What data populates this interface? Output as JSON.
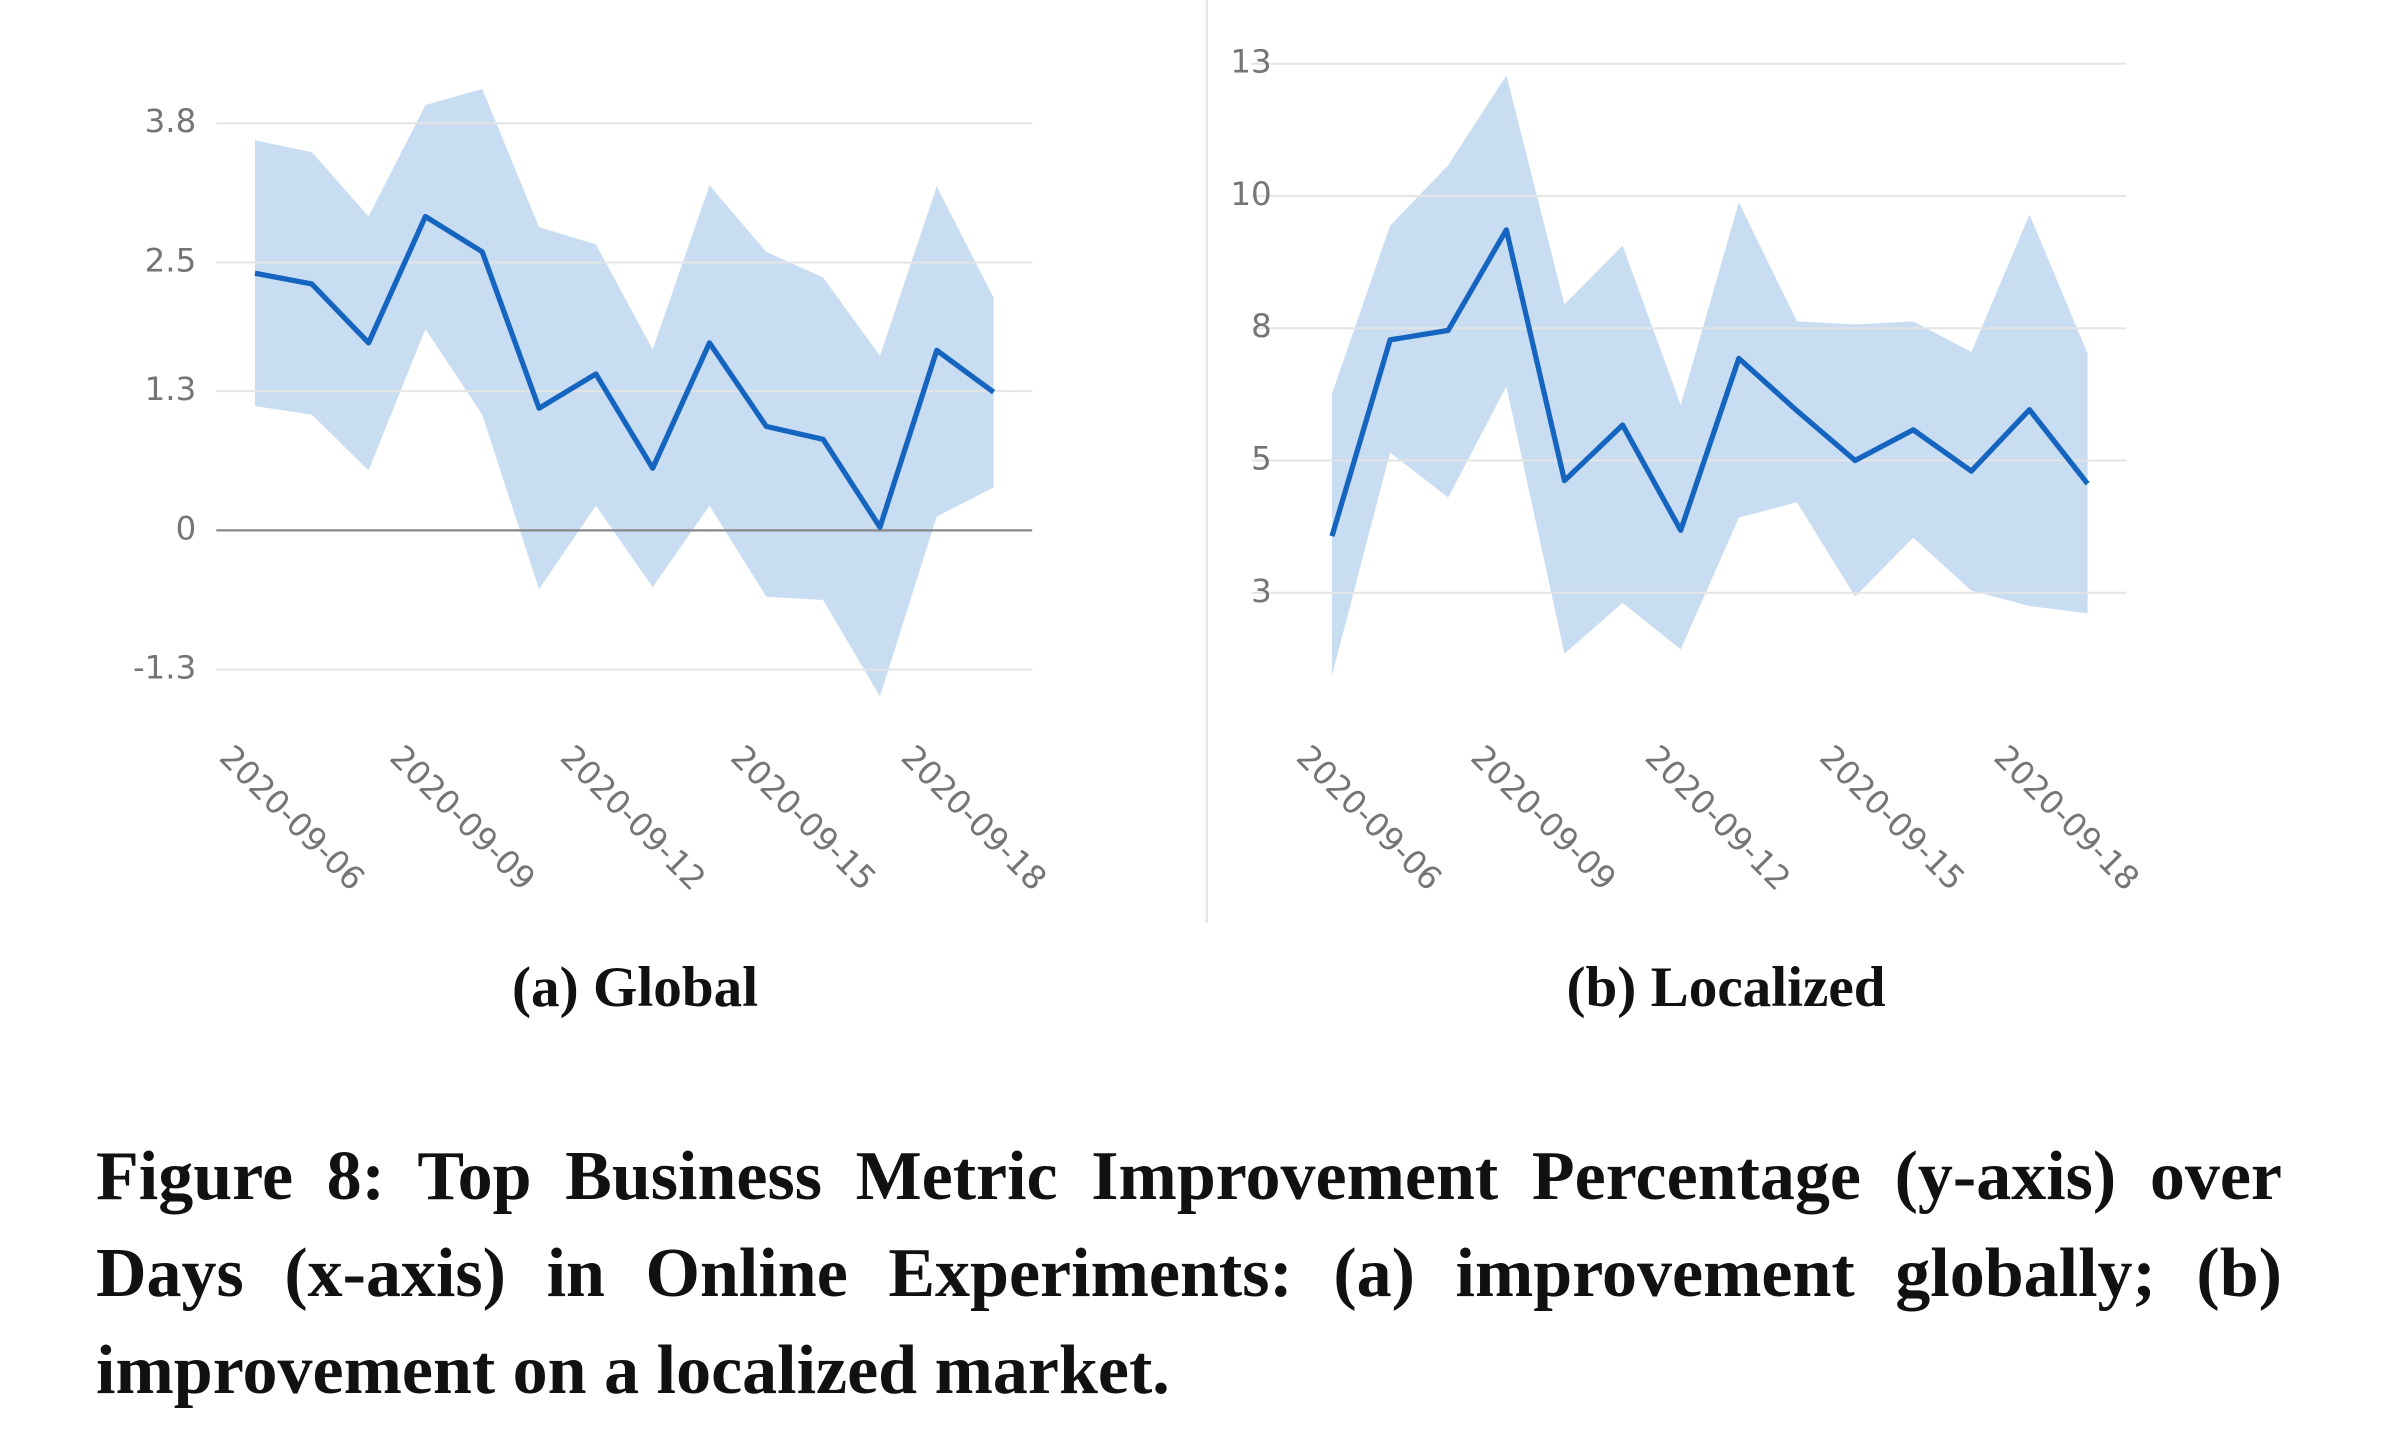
{
  "chart_data": [
    {
      "type": "line",
      "title": "(a) Global",
      "categories": [
        "2020-09-06",
        null,
        null,
        "2020-09-09",
        null,
        null,
        "2020-09-12",
        null,
        null,
        "2020-09-15",
        null,
        null,
        "2020-09-18",
        null
      ],
      "series": [
        {
          "color": "#1565c0",
          "values": [
            2.4,
            2.3,
            1.75,
            2.93,
            2.6,
            1.14,
            1.46,
            0.58,
            1.75,
            0.97,
            0.85,
            0.03,
            1.68,
            1.29
          ]
        }
      ],
      "band": {
        "color": "#c9ddf2",
        "upper": [
          3.64,
          3.53,
          2.93,
          3.97,
          4.12,
          2.83,
          2.67,
          1.69,
          3.22,
          2.6,
          2.36,
          1.63,
          3.21,
          2.17
        ],
        "lower": [
          1.16,
          1.08,
          0.56,
          1.88,
          1.08,
          -0.55,
          0.23,
          -0.53,
          0.23,
          -0.62,
          -0.65,
          -1.55,
          0.13,
          0.4
        ]
      },
      "ylim": [
        -1.7,
        4.3
      ],
      "yticks": [
        3.8,
        2.5,
        1.3,
        0.0,
        -1.3
      ],
      "grid": true
    },
    {
      "type": "line",
      "title": "(b) Localized",
      "categories": [
        "2020-09-06",
        null,
        null,
        "2020-09-09",
        null,
        null,
        "2020-09-12",
        null,
        null,
        "2020-09-15",
        null,
        null,
        "2020-09-18",
        null
      ],
      "series": [
        {
          "color": "#1565c0",
          "values": [
            3.57,
            7.28,
            7.46,
            9.36,
            4.62,
            5.67,
            3.68,
            6.93,
            5.94,
            5.0,
            5.58,
            4.8,
            5.96,
            4.56
          ]
        }
      ],
      "band": {
        "color": "#c9ddf2",
        "upper": [
          6.26,
          9.44,
          10.58,
          12.28,
          7.95,
          9.06,
          6.05,
          9.88,
          7.63,
          7.57,
          7.63,
          7.05,
          9.65,
          7.02
        ],
        "lower": [
          0.94,
          5.15,
          4.3,
          6.4,
          1.35,
          2.31,
          1.43,
          3.92,
          4.21,
          2.43,
          3.54,
          2.54,
          2.25,
          2.11
        ]
      },
      "ylim": [
        0.5,
        13
      ],
      "yticks": [
        {
          "value": 12.5,
          "label": "13"
        },
        10,
        {
          "value": 7.5,
          "label": "8"
        },
        5,
        {
          "value": 2.5,
          "label": "3"
        }
      ],
      "grid": true
    }
  ],
  "caption": "Figure 8: Top Business Metric Improvement Percentage (y-axis) over Days (x-axis) in Online Experiments: (a) improvement globally; (b) improvement on a localized market."
}
